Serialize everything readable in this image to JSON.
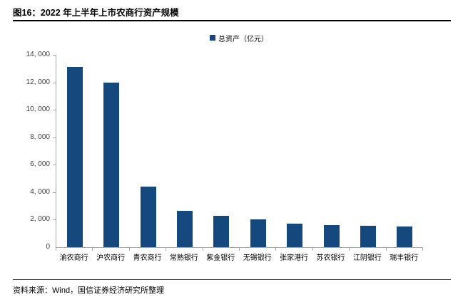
{
  "figure": {
    "title": "图16：2022 年上半年上市农商行资产规模",
    "source": "资料来源：Wind，国信证券经济研究所整理"
  },
  "chart_data": {
    "type": "bar",
    "title": "图16：2022 年上半年上市农商行资产规模",
    "legend": [
      "总资产（亿元）"
    ],
    "legend_position": "top-center",
    "categories": [
      "渝农商行",
      "沪农商行",
      "青农商行",
      "常熟银行",
      "紫金银行",
      "无锡银行",
      "张家港行",
      "苏农银行",
      "江阴银行",
      "瑞丰银行"
    ],
    "values": [
      13120,
      11980,
      4390,
      2640,
      2270,
      2040,
      1730,
      1620,
      1570,
      1500
    ],
    "xlabel": "",
    "ylabel": "",
    "ylim": [
      0,
      14000
    ],
    "ytick_step": 2000,
    "ytick_labels": [
      "0",
      "2, 000",
      "4, 000",
      "6, 000",
      "8, 000",
      "10, 000",
      "12, 000",
      "14, 000"
    ],
    "grid": false,
    "bar_color": "#15497E",
    "axis_color": "#a6a6a6"
  }
}
